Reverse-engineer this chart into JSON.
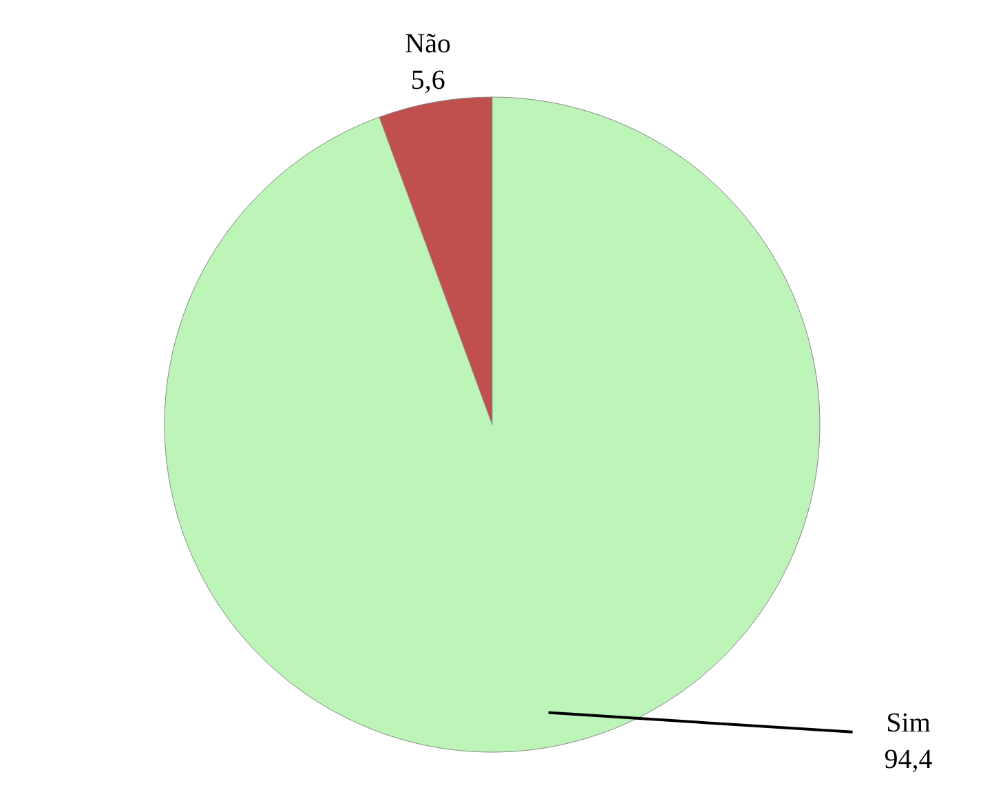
{
  "chart_data": {
    "type": "pie",
    "categories": [
      "Não",
      "Sim"
    ],
    "values": [
      5.6,
      94.4
    ],
    "colors": [
      "#c0504d",
      "#bdf5b9"
    ],
    "value_labels": [
      "5,6",
      "94,4"
    ]
  }
}
